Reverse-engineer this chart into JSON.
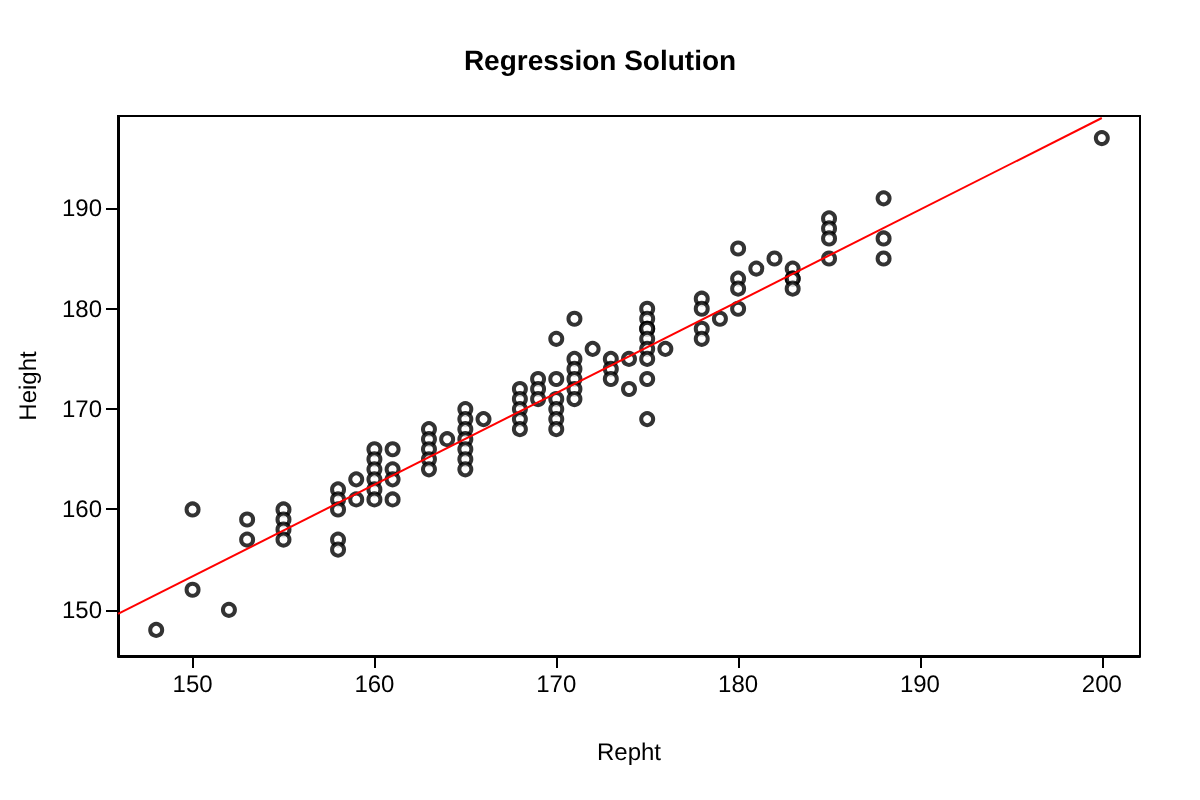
{
  "chart_data": {
    "type": "scatter",
    "title": "Regression Solution",
    "xlabel": "Repht",
    "ylabel": "Height",
    "xlim": [
      145.9,
      202.1
    ],
    "ylim": [
      145.4,
      199.2
    ],
    "xticks": [
      150,
      160,
      170,
      180,
      190,
      200
    ],
    "yticks": [
      150,
      160,
      170,
      180,
      190
    ],
    "grid": false,
    "series": [
      {
        "color": "#000000",
        "marker": "circle",
        "x": [
          148,
          150,
          150,
          152,
          153,
          153,
          155,
          155,
          155,
          155,
          158,
          158,
          158,
          158,
          158,
          159,
          159,
          160,
          160,
          160,
          160,
          160,
          160,
          161,
          161,
          161,
          161,
          163,
          163,
          163,
          163,
          163,
          164,
          165,
          165,
          165,
          165,
          165,
          165,
          165,
          166,
          168,
          168,
          168,
          168,
          168,
          169,
          169,
          169,
          170,
          170,
          170,
          170,
          170,
          170,
          171,
          171,
          171,
          171,
          171,
          171,
          172,
          173,
          173,
          173,
          174,
          174,
          175,
          175,
          175,
          175,
          175,
          175,
          175,
          175,
          175,
          176,
          178,
          178,
          178,
          178,
          179,
          180,
          180,
          180,
          180,
          181,
          182,
          183,
          183,
          183,
          183,
          185,
          185,
          185,
          185,
          188,
          188,
          188,
          200
        ],
        "values": [
          148,
          160,
          152,
          150,
          159,
          157,
          160,
          159,
          158,
          157,
          162,
          161,
          160,
          157,
          156,
          163,
          161,
          166,
          165,
          164,
          163,
          162,
          161,
          166,
          164,
          163,
          161,
          168,
          167,
          166,
          165,
          164,
          167,
          170,
          169,
          168,
          167,
          166,
          165,
          164,
          169,
          172,
          171,
          170,
          169,
          168,
          173,
          172,
          171,
          177,
          173,
          171,
          170,
          169,
          168,
          179,
          175,
          174,
          173,
          172,
          171,
          176,
          175,
          174,
          173,
          175,
          172,
          180,
          179,
          178,
          178,
          177,
          176,
          175,
          173,
          169,
          176,
          181,
          180,
          178,
          177,
          179,
          186,
          183,
          182,
          180,
          184,
          185,
          184,
          183,
          183,
          182,
          189,
          188,
          187,
          185,
          191,
          187,
          185,
          197
        ]
      },
      {
        "type": "line",
        "color": "#ff0000",
        "marker": "none",
        "x": [
          145.9,
          200
        ],
        "values": [
          149.6,
          199.0
        ]
      }
    ]
  }
}
